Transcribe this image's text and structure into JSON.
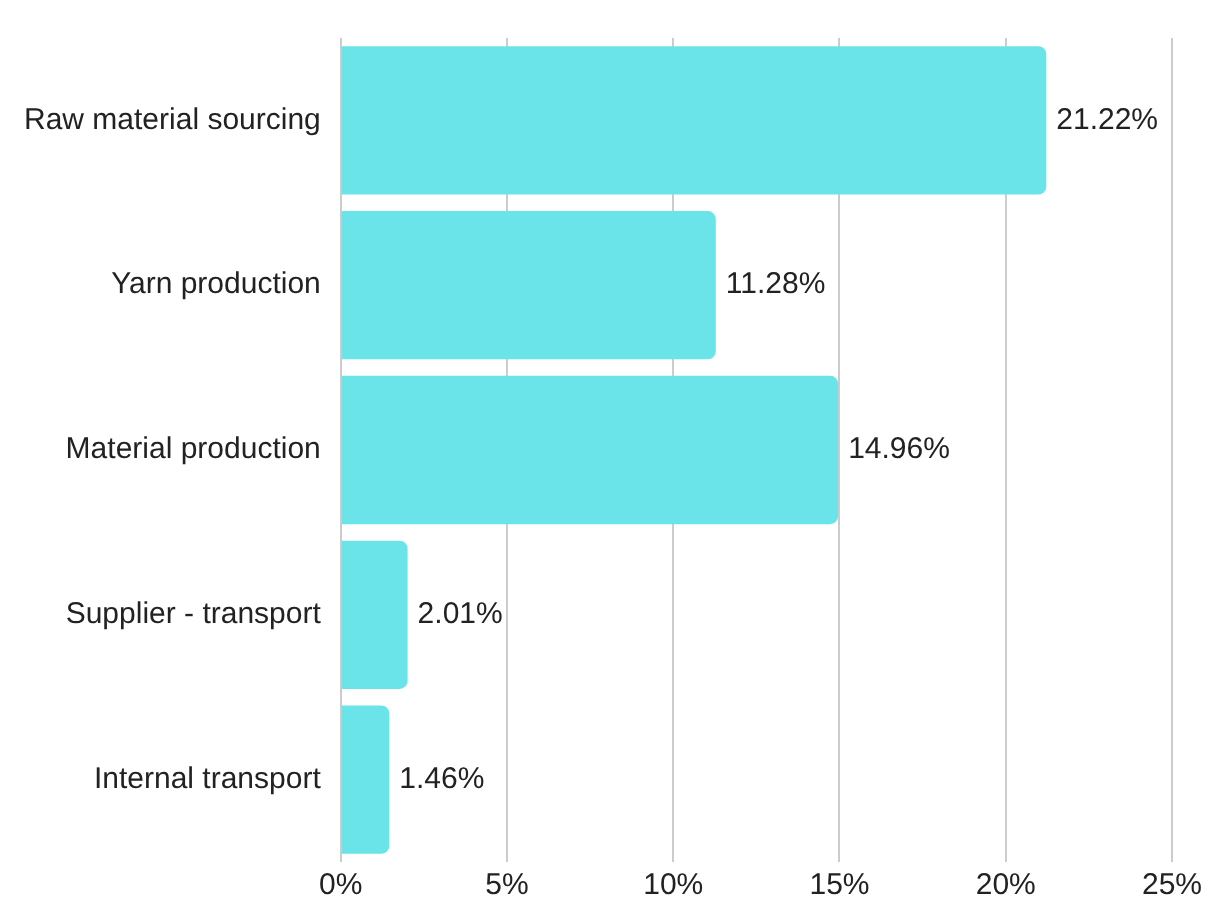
{
  "chart_data": {
    "type": "bar",
    "orientation": "horizontal",
    "categories": [
      "Raw material sourcing",
      "Yarn production",
      "Material production",
      "Supplier - transport",
      "Internal transport"
    ],
    "values": [
      21.22,
      11.28,
      14.96,
      2.01,
      1.46
    ],
    "value_labels": [
      "21.22%",
      "11.28%",
      "14.96%",
      "2.01%",
      "1.46%"
    ],
    "color": "#6ae4e9",
    "xlim": [
      0,
      25
    ],
    "xticks": [
      {
        "value": 0,
        "label": "0%"
      },
      {
        "value": 5,
        "label": "5%"
      },
      {
        "value": 10,
        "label": "10%"
      },
      {
        "value": 15,
        "label": "15%"
      },
      {
        "value": 20,
        "label": "20%"
      },
      {
        "value": 25,
        "label": "25%"
      }
    ],
    "grid": "x",
    "legend": false
  }
}
